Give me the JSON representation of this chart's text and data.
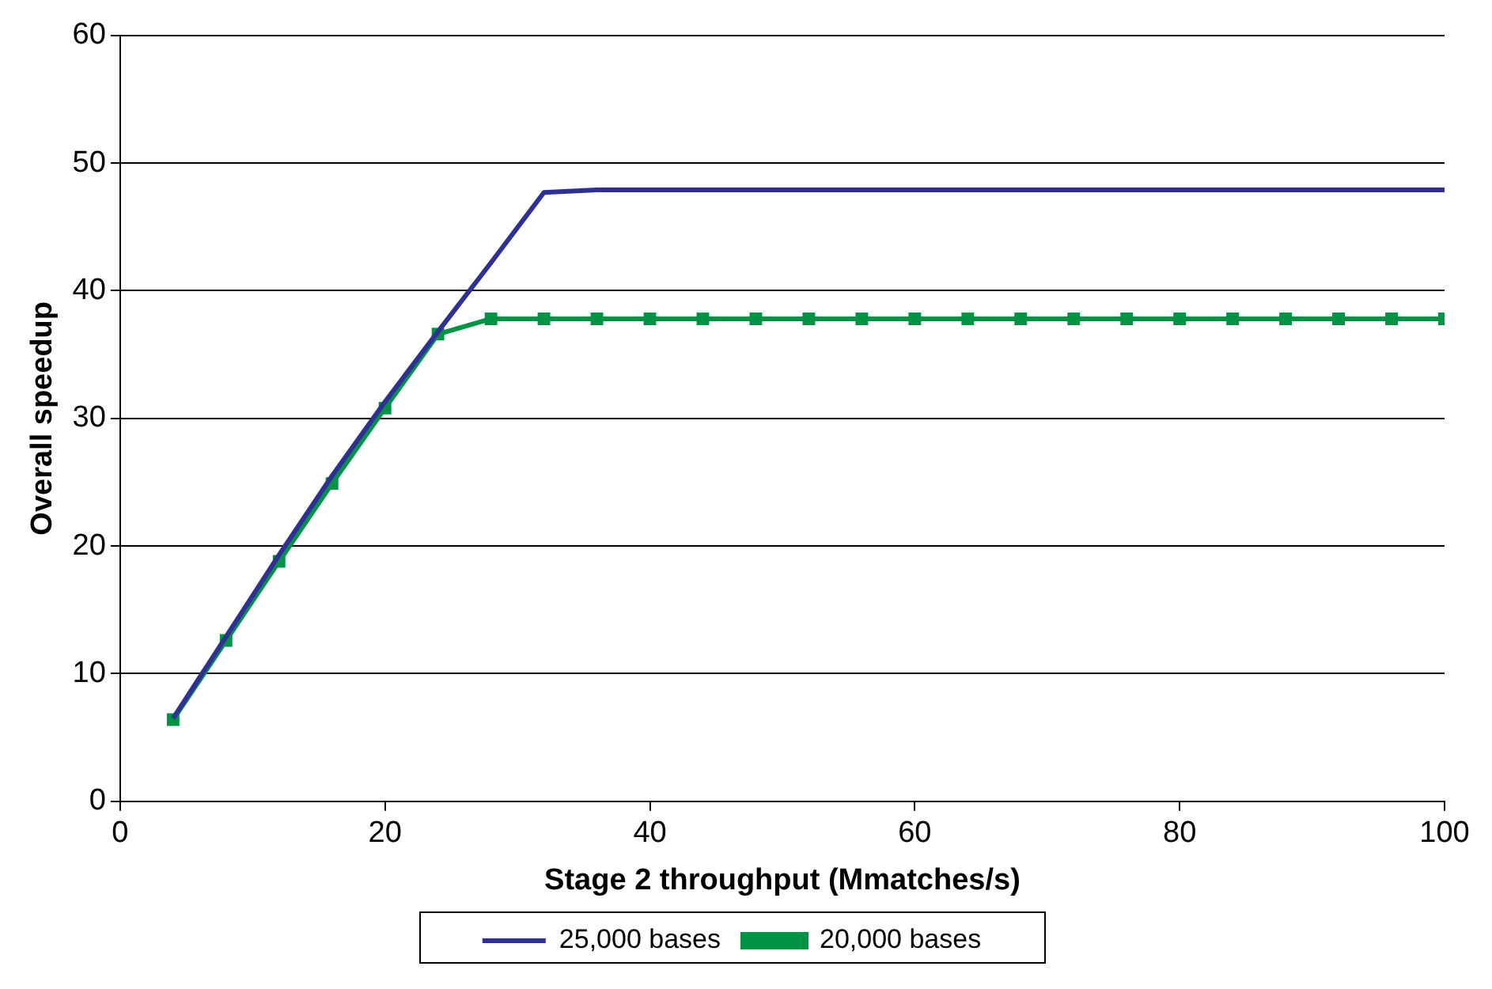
{
  "chart_data": {
    "type": "line",
    "xlabel": "Stage 2 throughput (Mmatches/s)",
    "ylabel": "Overall speedup",
    "x": [
      4,
      8,
      12,
      16,
      20,
      24,
      28,
      32,
      36,
      40,
      44,
      48,
      52,
      56,
      60,
      64,
      68,
      72,
      76,
      80,
      84,
      88,
      92,
      96,
      100
    ],
    "series": [
      {
        "name": "25,000 bases",
        "color": "#2e3192",
        "marker": "none",
        "values": [
          6.5,
          12.9,
          19.3,
          25.5,
          31.3,
          36.8,
          42.2,
          47.7,
          47.9,
          47.9,
          47.9,
          47.9,
          47.9,
          47.9,
          47.9,
          47.9,
          47.9,
          47.9,
          47.9,
          47.9,
          47.9,
          47.9,
          47.9,
          47.9,
          47.9
        ]
      },
      {
        "name": "20,000 bases",
        "color": "#009245",
        "marker": "square",
        "values": [
          6.4,
          12.6,
          18.8,
          24.9,
          30.8,
          36.6,
          37.8,
          37.8,
          37.8,
          37.8,
          37.8,
          37.8,
          37.8,
          37.8,
          37.8,
          37.8,
          37.8,
          37.8,
          37.8,
          37.8,
          37.8,
          37.8,
          37.8,
          37.8,
          37.8
        ]
      }
    ],
    "xlim": [
      0,
      100
    ],
    "xticks": [
      0,
      20,
      40,
      60,
      80,
      100
    ],
    "ylim": [
      0,
      60
    ],
    "yticks": [
      0,
      10,
      20,
      30,
      40,
      50,
      60
    ],
    "grid": "y",
    "legend": "bottom",
    "line_style": "solid"
  }
}
